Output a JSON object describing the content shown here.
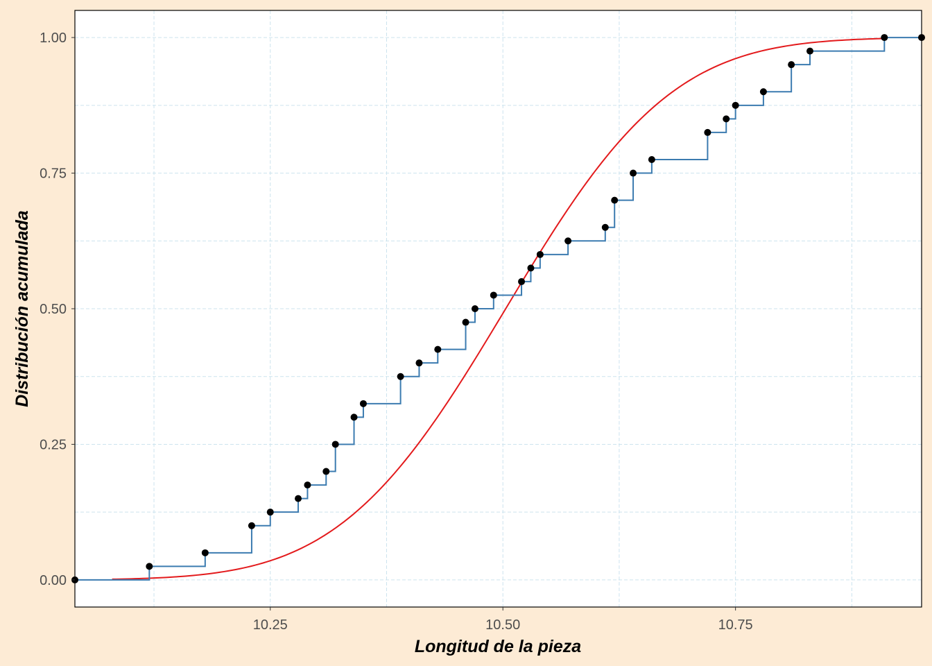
{
  "chart_data": {
    "type": "line",
    "title": "",
    "xlabel": "Longitud de la pieza",
    "ylabel": "Distribución acumulada",
    "xlim": [
      10.04,
      10.95
    ],
    "ylim": [
      -0.05,
      1.05
    ],
    "x_ticks": [
      10.25,
      10.5,
      10.75
    ],
    "x_tick_labels": [
      "10.25",
      "10.50",
      "10.75"
    ],
    "y_ticks": [
      0,
      0.25,
      0.5,
      0.75,
      1
    ],
    "y_tick_labels": [
      "0.00",
      "0.25",
      "0.50",
      "0.75",
      "1.00"
    ],
    "grid": true,
    "legend": "none",
    "colors": {
      "background": "#FDEBD5",
      "panel": "#FFFFFF",
      "grid": "#CCE3EE",
      "step": "#3B7BB0",
      "points": "#000000",
      "curve": "#E31A1C"
    },
    "series": [
      {
        "type": "step",
        "x": [
          10.04,
          10.12,
          10.18,
          10.23,
          10.25,
          10.28,
          10.29,
          10.31,
          10.32,
          10.34,
          10.35,
          10.39,
          10.41,
          10.43,
          10.46,
          10.47,
          10.49,
          10.52,
          10.53,
          10.54,
          10.57,
          10.61,
          10.62,
          10.64,
          10.66,
          10.72,
          10.74,
          10.75,
          10.78,
          10.81,
          10.83,
          10.91,
          10.95
        ],
        "y": [
          0.0,
          0.025,
          0.05,
          0.1,
          0.125,
          0.15,
          0.175,
          0.2,
          0.25,
          0.3,
          0.325,
          0.375,
          0.4,
          0.425,
          0.475,
          0.5,
          0.525,
          0.55,
          0.575,
          0.6,
          0.625,
          0.65,
          0.7,
          0.75,
          0.775,
          0.825,
          0.85,
          0.875,
          0.9,
          0.95,
          0.975,
          1.0,
          1.0
        ]
      },
      {
        "type": "normal_cdf",
        "mean": 10.503,
        "sd": 0.14,
        "x_range": [
          10.08,
          10.91
        ]
      }
    ]
  }
}
